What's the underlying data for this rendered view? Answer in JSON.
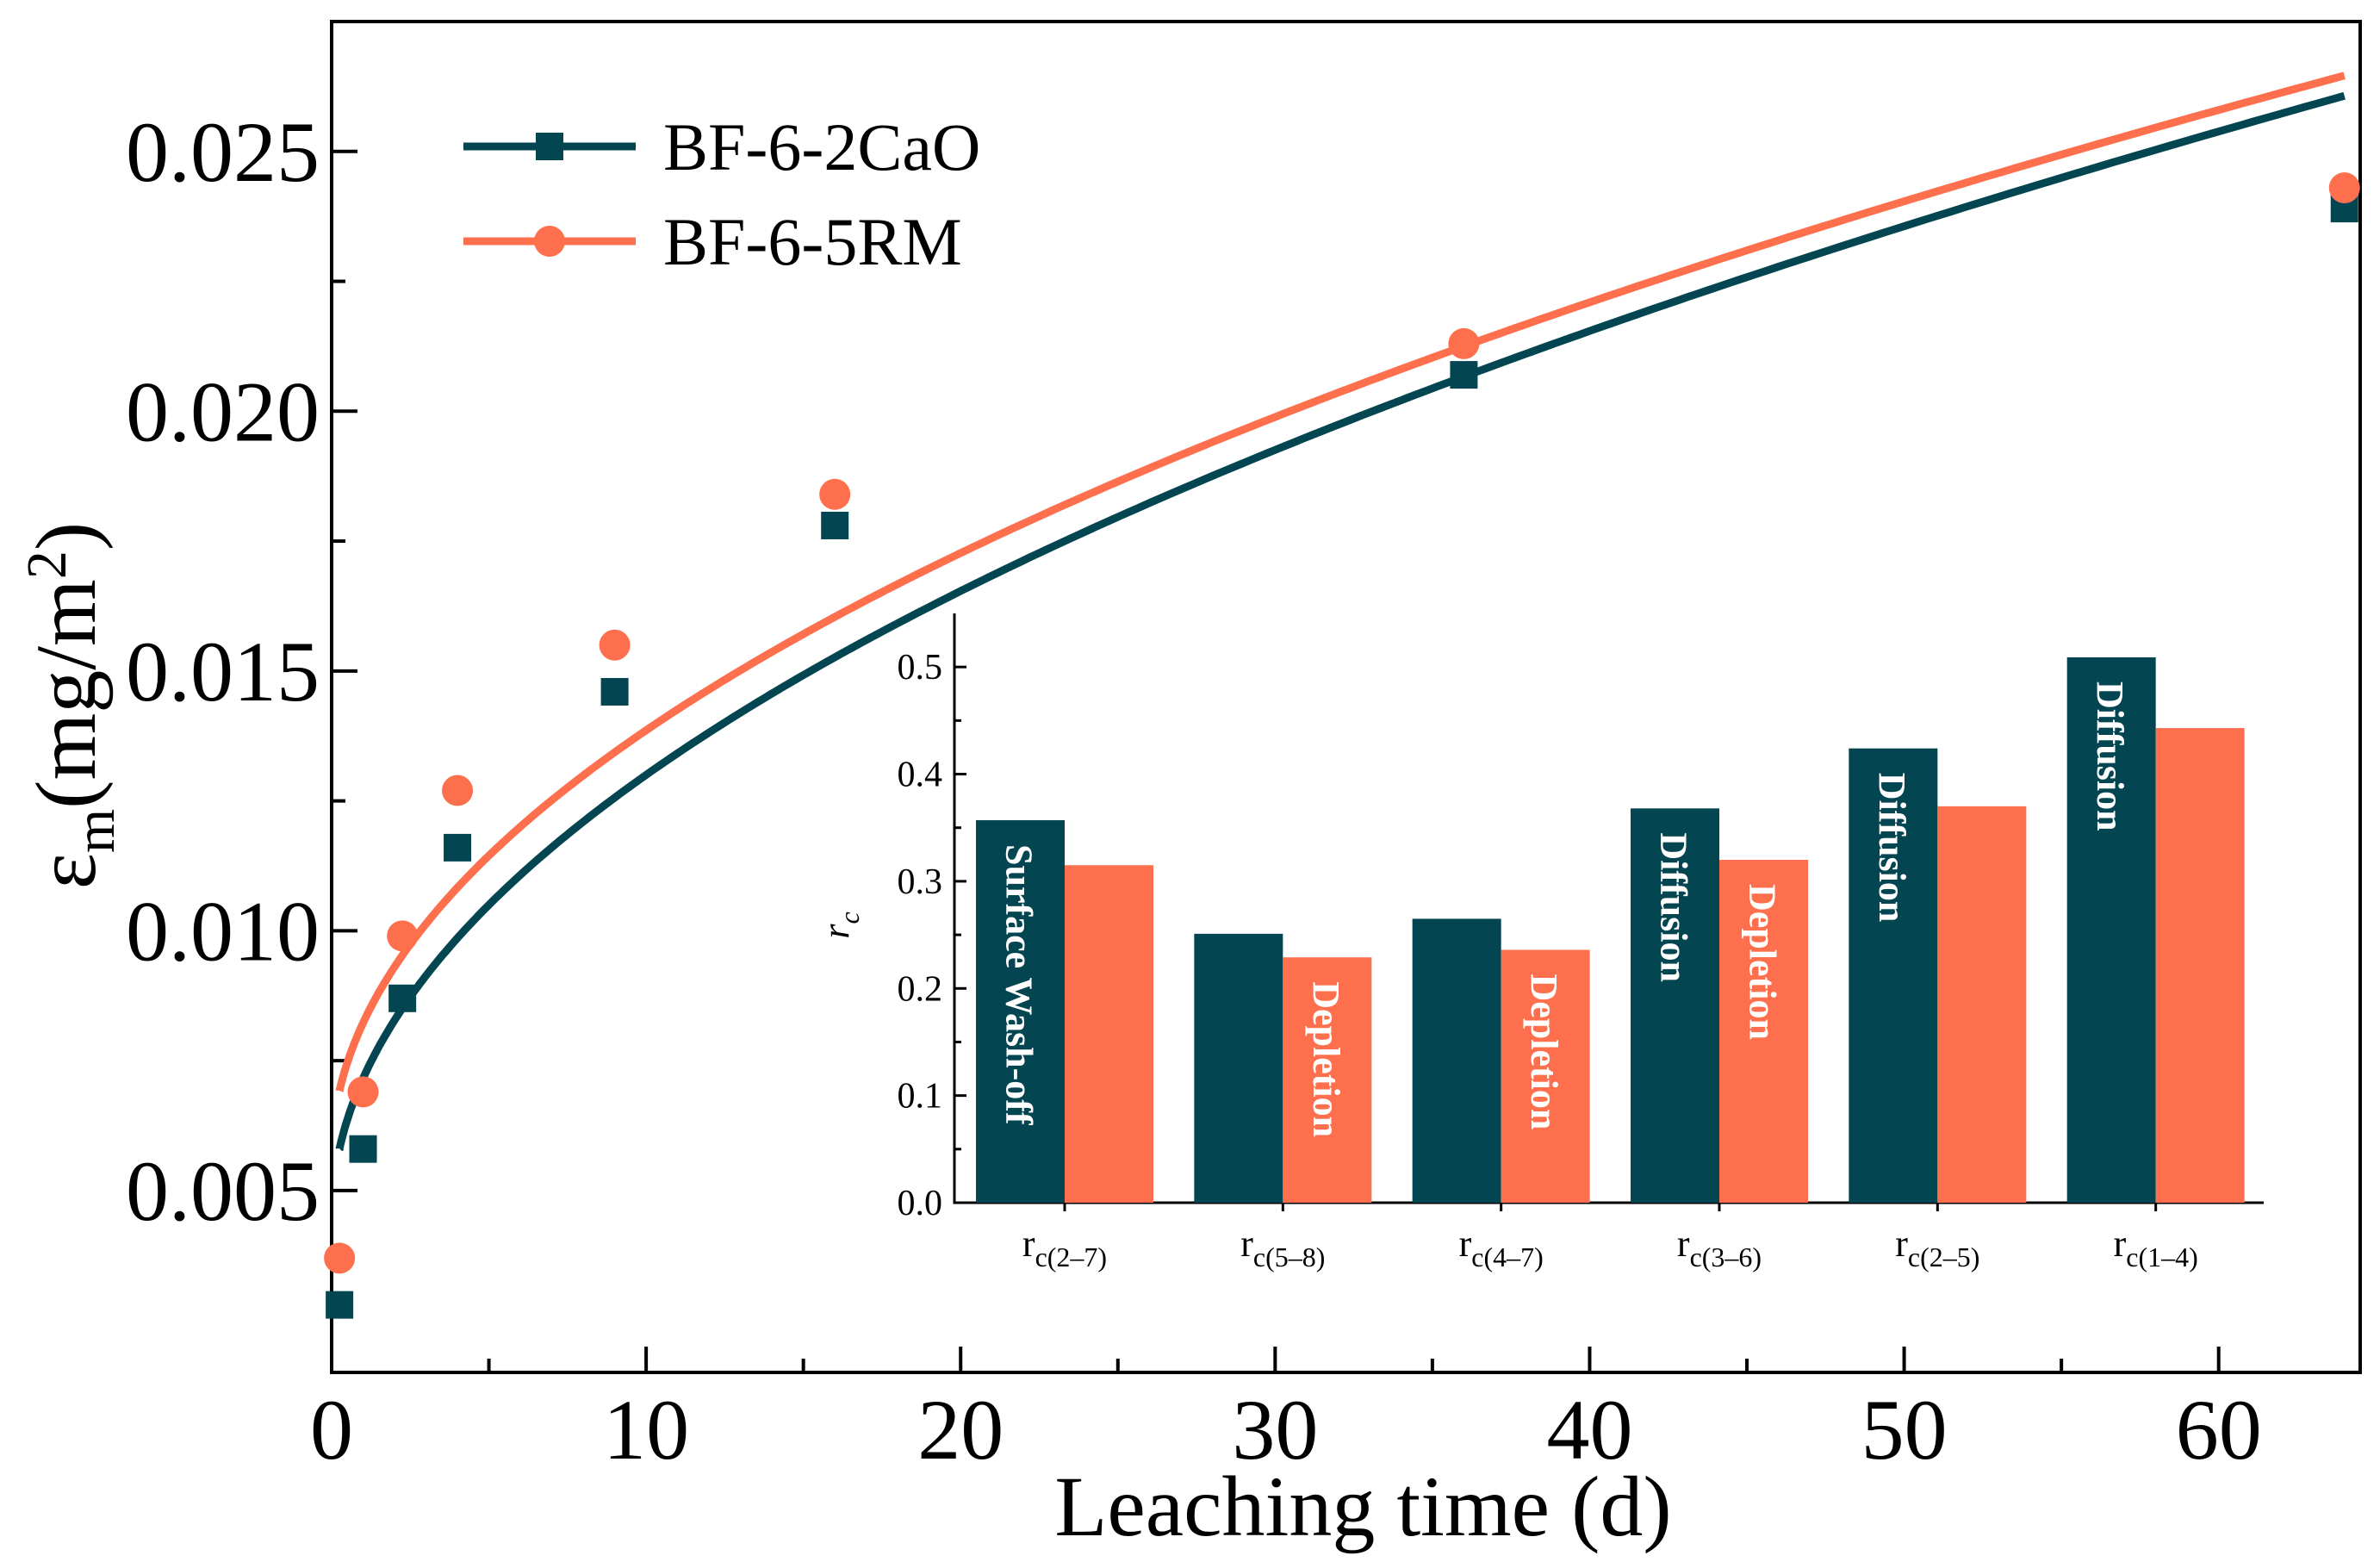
{
  "colors": {
    "series1": "#034652",
    "series2": "#FD6F4D",
    "axis": "#000000"
  },
  "chart_data": [
    {
      "type": "line",
      "title": "",
      "xlabel": "Leaching time (d)",
      "ylabel_main": "ε",
      "ylabel_sub": "m",
      "ylabel_rest": "(mg/m",
      "ylabel_sup": "2",
      "ylabel_end": ")",
      "xlim": [
        0,
        64.5
      ],
      "ylim": [
        0.0015,
        0.0275
      ],
      "xticks": [
        0,
        10,
        20,
        30,
        40,
        50,
        60
      ],
      "xtick_labels": [
        "0",
        "10",
        "20",
        "30",
        "40",
        "50",
        "60"
      ],
      "yticks": [
        0.005,
        0.01,
        0.015,
        0.02,
        0.025
      ],
      "ytick_labels": [
        "0.005",
        "0.010",
        "0.015",
        "0.020",
        "0.025"
      ],
      "legend_position": "top-left",
      "series": [
        {
          "name": "BF-6-2CaO",
          "marker": "square",
          "x": [
            0.25,
            1,
            2.25,
            4,
            9,
            16,
            36,
            64
          ],
          "y": [
            0.0028,
            0.0058,
            0.0087,
            0.0116,
            0.0146,
            0.0178,
            0.0207,
            0.0239
          ]
        },
        {
          "name": "BF-6-5RM",
          "marker": "circle",
          "x": [
            0.25,
            1,
            2.25,
            4,
            9,
            16,
            36,
            64
          ],
          "y": [
            0.0037,
            0.0069,
            0.0099,
            0.0127,
            0.0155,
            0.0184,
            0.0213,
            0.0243
          ]
        }
      ]
    },
    {
      "type": "bar",
      "title": "",
      "ylabel": "r",
      "ylabel_sub": "c",
      "ylim": [
        0,
        0.55
      ],
      "yticks": [
        0.0,
        0.1,
        0.2,
        0.3,
        0.4,
        0.5
      ],
      "ytick_labels": [
        "0.0",
        "0.1",
        "0.2",
        "0.3",
        "0.4",
        "0.5"
      ],
      "categories": [
        {
          "main": "r",
          "sub": "c(2–7)"
        },
        {
          "main": "r",
          "sub": "c(5–8)"
        },
        {
          "main": "r",
          "sub": "c(4–7)"
        },
        {
          "main": "r",
          "sub": "c(3–6)"
        },
        {
          "main": "r",
          "sub": "c(2–5)"
        },
        {
          "main": "r",
          "sub": "c(1–4)"
        }
      ],
      "series": [
        {
          "name": "BF-6-2CaO",
          "values": [
            0.357,
            0.251,
            0.265,
            0.368,
            0.424,
            0.509
          ]
        },
        {
          "name": "BF-6-5RM",
          "values": [
            0.315,
            0.229,
            0.236,
            0.32,
            0.37,
            0.443
          ]
        }
      ],
      "bar_labels": [
        {
          "text": "Surface Wash-off",
          "series": 0,
          "category": 0
        },
        {
          "text": "Depletion",
          "series": 1,
          "category": 1
        },
        {
          "text": "Depletion",
          "series": 1,
          "category": 2
        },
        {
          "text": "Diffusion",
          "series": 0,
          "category": 3
        },
        {
          "text": "Depletion",
          "series": 1,
          "category": 3
        },
        {
          "text": "Diffusion",
          "series": 0,
          "category": 4
        },
        {
          "text": "Diffusion",
          "series": 0,
          "category": 5
        }
      ]
    }
  ]
}
